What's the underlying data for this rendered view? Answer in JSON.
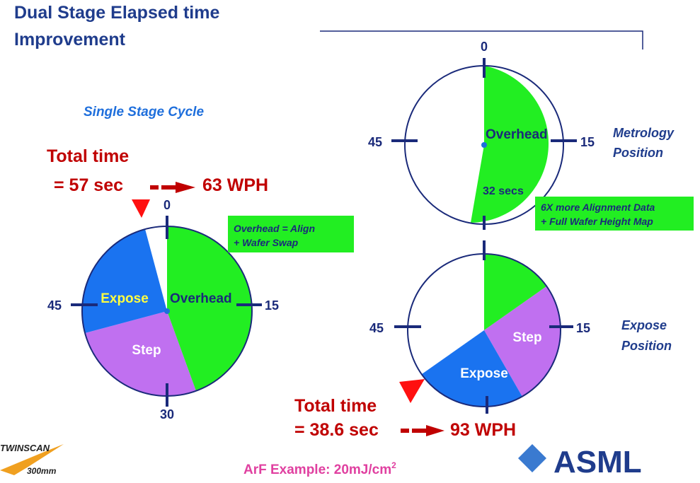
{
  "header": {
    "title_line1": "Dual Stage Elapsed time",
    "title_line2": "Improvement"
  },
  "single_stage": {
    "label": "Single Stage Cycle",
    "total_time": "Total time",
    "total_value": "= 57 sec",
    "wph": "63 WPH",
    "note_line1": "Overhead = Align",
    "note_line2": "+ Wafer Swap",
    "ticks": {
      "top": "0",
      "right": "15",
      "bottom": "30",
      "left": "45"
    },
    "segments": {
      "overhead": "Overhead",
      "step": "Step",
      "expose": "Expose"
    }
  },
  "metrology_stage": {
    "position_line1": "Metrology",
    "position_line2": "Position",
    "ticks": {
      "top": "0",
      "right": "15",
      "left": "45"
    },
    "segments": {
      "overhead": "Overhead",
      "duration": "32 secs"
    },
    "note_line1": "6X more Alignment Data",
    "note_line2": "+ Full Wafer Height Map"
  },
  "expose_stage": {
    "position_line1": "Expose",
    "position_line2": "Position",
    "ticks": {
      "right": "15",
      "left": "45"
    },
    "segments": {
      "step": "Step",
      "expose": "Expose"
    },
    "total_time": "Total time",
    "total_value": "= 38.6 sec",
    "wph": "93 WPH"
  },
  "footer": {
    "example": "ArF Example: 20mJ/cm",
    "example_sup": "2",
    "logo_left_line1": "TWINSCAN",
    "logo_left_line2": "300mm",
    "logo_right": "ASML"
  }
}
